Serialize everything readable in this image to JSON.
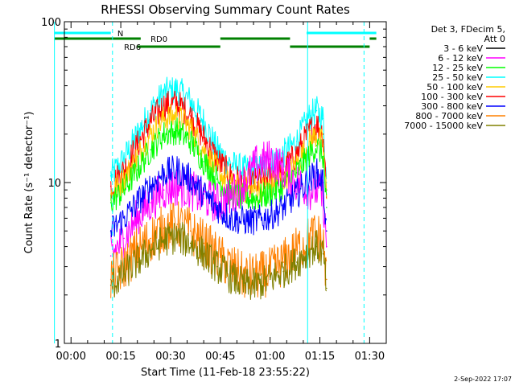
{
  "chart_data": {
    "type": "line",
    "title": "RHESSI Observing Summary Count Rates",
    "xlabel": "Start Time (11-Feb-18 23:55:22)",
    "ylabel": "Count Rate (s⁻¹ detector⁻¹)",
    "y_scale": "log",
    "ylim": [
      1,
      100
    ],
    "xlim_minutes": [
      -2,
      95
    ],
    "x_ticks": [
      "00:00",
      "00:15",
      "00:30",
      "00:45",
      "01:00",
      "01:15",
      "01:30"
    ],
    "y_ticks": [
      "1",
      "10",
      "100"
    ],
    "legend": {
      "position": "top-right",
      "header": [
        "Det 3, FDecim 5,",
        "Att 0"
      ],
      "entries": [
        {
          "label": "3 - 6 keV",
          "color": "#000000"
        },
        {
          "label": "6 - 12 keV",
          "color": "#ff00ff"
        },
        {
          "label": "12 - 25 keV",
          "color": "#00ff00"
        },
        {
          "label": "25 - 50 keV",
          "color": "#00ffff"
        },
        {
          "label": "50 - 100 keV",
          "color": "#ffcc00"
        },
        {
          "label": "100 - 300 keV",
          "color": "#ff0000"
        },
        {
          "label": "300 - 800 keV",
          "color": "#0000ff"
        },
        {
          "label": "800 - 7000 keV",
          "color": "#ff8000"
        },
        {
          "label": "7000 - 15000 keV",
          "color": "#808000"
        }
      ]
    },
    "series_time_minutes": [
      12,
      16,
      20,
      24,
      28,
      32,
      36,
      40,
      44,
      48,
      52,
      56,
      60,
      64,
      68,
      72,
      74,
      76,
      77
    ],
    "series": [
      {
        "name": "25 - 50 keV",
        "color": "#00ffff",
        "values": [
          11,
          14,
          20,
          28,
          36,
          38,
          32,
          24,
          16,
          13,
          12,
          12,
          13,
          15,
          18,
          26,
          28,
          25,
          10
        ]
      },
      {
        "name": "100 - 300 keV",
        "color": "#ff0000",
        "values": [
          9.5,
          12,
          17,
          24,
          30,
          31,
          26,
          19,
          14,
          11,
          10,
          10,
          11,
          12,
          15,
          21,
          23,
          20,
          9
        ]
      },
      {
        "name": "50 - 100 keV",
        "color": "#ffcc00",
        "values": [
          8.5,
          10.5,
          14.5,
          20,
          25,
          26,
          22,
          16,
          12,
          9.5,
          9,
          9,
          9.5,
          10.5,
          13,
          18,
          20,
          17,
          8
        ]
      },
      {
        "name": "12 - 25 keV",
        "color": "#00ff00",
        "values": [
          7.5,
          9,
          12,
          16,
          20,
          21,
          18,
          13.5,
          10.5,
          8.5,
          8,
          8,
          8.5,
          9.5,
          11.5,
          15,
          17,
          14.5,
          7
        ]
      },
      {
        "name": "6 - 12 keV",
        "color": "#ff00ff",
        "values": [
          3.5,
          4.5,
          6,
          7.5,
          9,
          9.5,
          9,
          8,
          7.5,
          8,
          10,
          13,
          14,
          12,
          10,
          9,
          9,
          8,
          4
        ]
      },
      {
        "name": "300 - 800 keV",
        "color": "#0000ff",
        "values": [
          5,
          6,
          7.5,
          9.5,
          11.5,
          12,
          10.5,
          8.5,
          7,
          6,
          5.8,
          5.8,
          6.2,
          7,
          8.5,
          10.5,
          11.5,
          10,
          5
        ]
      },
      {
        "name": "800 - 7000 keV",
        "color": "#ff8000",
        "values": [
          2.5,
          3,
          3.8,
          4.5,
          5.2,
          5.5,
          5,
          4.2,
          3.5,
          3,
          2.6,
          2.6,
          2.8,
          3.2,
          3.8,
          4.5,
          4.8,
          4.2,
          2.5
        ]
      },
      {
        "name": "7000 - 15000 keV",
        "color": "#808000",
        "values": [
          2.3,
          2.7,
          3.2,
          3.8,
          4.4,
          4.6,
          4.2,
          3.6,
          3,
          2.6,
          2.3,
          2.3,
          2.5,
          2.8,
          3.2,
          3.8,
          4,
          3.6,
          2.2
        ]
      }
    ],
    "status_bars": [
      {
        "label": "N",
        "color": "#00ffff",
        "segments_minutes": [
          [
            -5,
            12
          ],
          [
            71,
            92
          ]
        ],
        "show_label_at": 13
      },
      {
        "label": "RD0",
        "color": "#008000",
        "segments_minutes": [
          [
            -5,
            21
          ],
          [
            45,
            66
          ],
          [
            90,
            92
          ]
        ],
        "show_label_at": 23
      },
      {
        "label": "RD6",
        "color": "#008000",
        "segments_minutes": [
          [
            20,
            45
          ],
          [
            66,
            90
          ]
        ],
        "show_label_at": 15
      }
    ],
    "vertical_markers": [
      {
        "minute": -5,
        "color": "#00ffff",
        "style": "solid"
      },
      {
        "minute": 12.5,
        "color": "#00ffff",
        "style": "dashed"
      },
      {
        "minute": 71.3,
        "color": "#00ffff",
        "style": "solid"
      },
      {
        "minute": 88.3,
        "color": "#00ffff",
        "style": "dashed"
      }
    ]
  },
  "footer": {
    "date_stamp": "2-Sep-2022 17:07"
  }
}
